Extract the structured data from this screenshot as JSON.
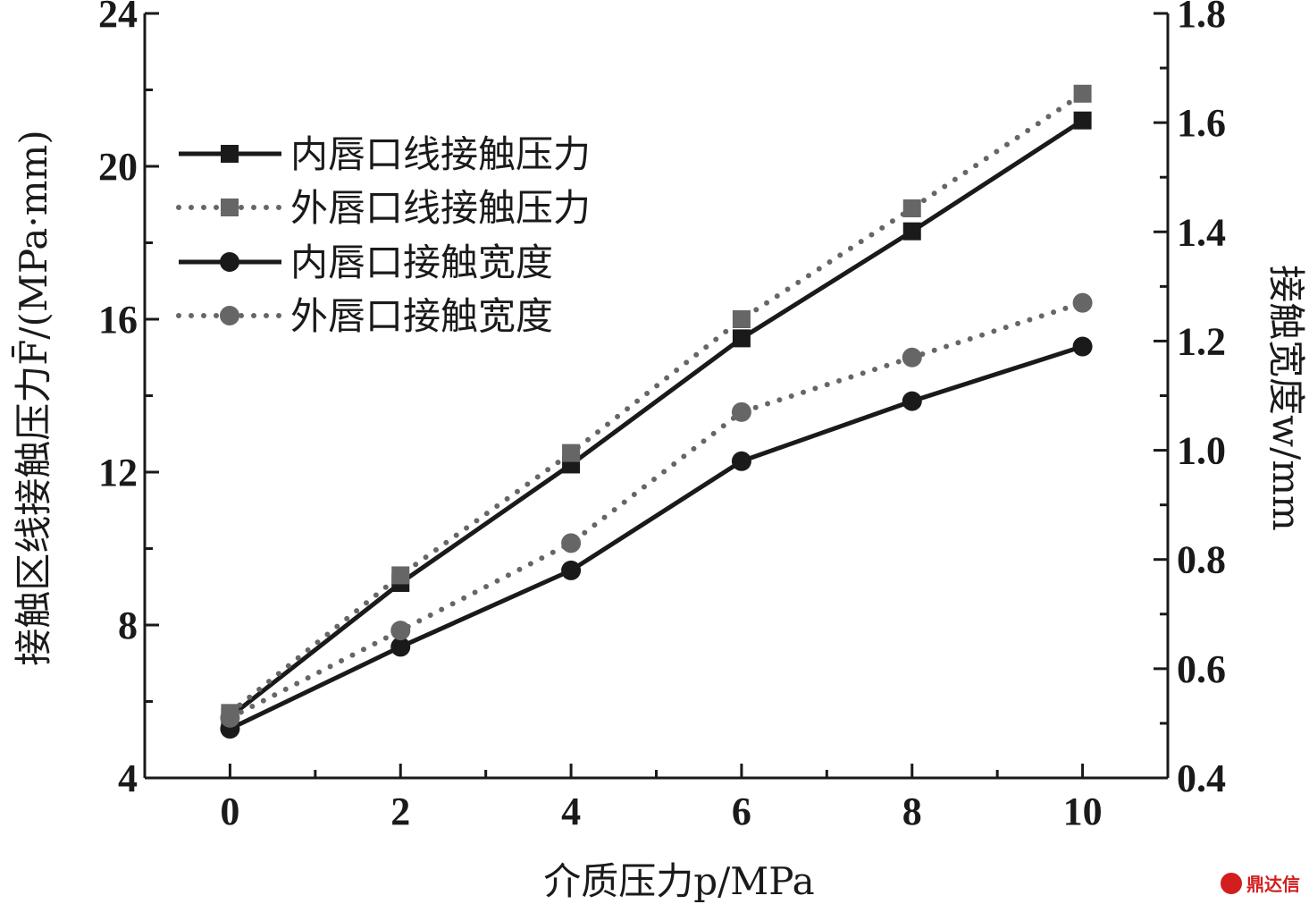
{
  "chart_data": {
    "type": "line",
    "x": [
      0,
      2,
      4,
      6,
      8,
      10
    ],
    "xlabel": "介质压力p/MPa",
    "xlim": [
      -1,
      11
    ],
    "xticks": [
      "0",
      "2",
      "4",
      "6",
      "8",
      "10"
    ],
    "ylabel_left": "接触区线接触压力F̄/(MPa·mm)",
    "ylim_left": [
      4,
      24
    ],
    "yticks_left": [
      "4",
      "8",
      "12",
      "16",
      "20",
      "24"
    ],
    "ylabel_right": "接触宽度w/mm",
    "ylim_right": [
      0.4,
      1.8
    ],
    "yticks_right": [
      "0.4",
      "0.6",
      "0.8",
      "1.0",
      "1.2",
      "1.4",
      "1.6",
      "1.8"
    ],
    "grid": false,
    "legend_position": "top-left",
    "series": [
      {
        "name": "内唇口线接触压力",
        "axis": "left",
        "marker": "square",
        "line": "solid",
        "color": "#1a1a1a",
        "values": [
          5.6,
          9.1,
          12.2,
          15.5,
          18.3,
          21.2
        ]
      },
      {
        "name": "外唇口线接触压力",
        "axis": "left",
        "marker": "square",
        "line": "dotted",
        "color": "#666666",
        "values": [
          5.7,
          9.3,
          12.5,
          16.0,
          18.9,
          21.9
        ]
      },
      {
        "name": "内唇口接触宽度",
        "axis": "right",
        "marker": "circle",
        "line": "solid",
        "color": "#1a1a1a",
        "values": [
          0.49,
          0.64,
          0.78,
          0.98,
          1.09,
          1.19
        ]
      },
      {
        "name": "外唇口接触宽度",
        "axis": "right",
        "marker": "circle",
        "line": "dotted",
        "color": "#666666",
        "values": [
          0.51,
          0.67,
          0.83,
          1.07,
          1.17,
          1.27
        ]
      }
    ]
  },
  "watermark": {
    "text": "鼎达信",
    "color": "#d21e1e"
  }
}
